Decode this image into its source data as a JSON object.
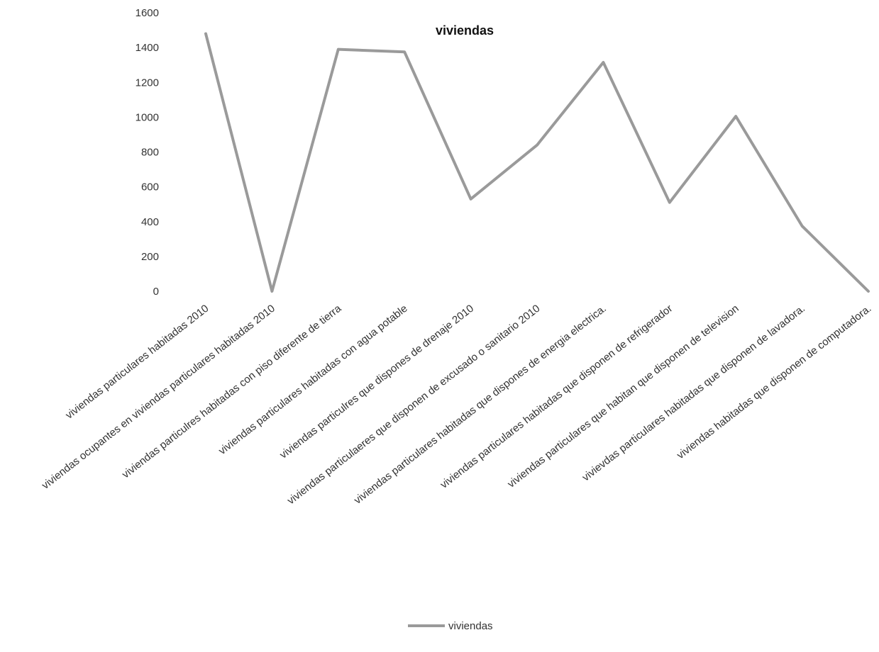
{
  "chart_data": {
    "type": "line",
    "title": "viviendas",
    "xlabel": "",
    "ylabel": "",
    "ylim": [
      0,
      1600
    ],
    "yticks": [
      0,
      200,
      400,
      600,
      800,
      1000,
      1200,
      1400,
      1600
    ],
    "yticks_labels": [
      "0",
      "200",
      "400",
      "600",
      "800",
      "1000",
      "1200",
      "1400",
      "1600"
    ],
    "grid": false,
    "legend_position": "bottom",
    "categories": [
      "viviendas particulares habitadas 2010",
      "viviendas ocupantes en viviendas particulares habitadas 2010",
      "viviendas particulres habitadas con piso diferente de tierra",
      "viviendas particulares habitadas con agua potable",
      "viviendas particulres que dispones de drenaje 2010",
      "viviendas particulaeres que disponen de excusado  o sanitario 2010",
      "viviendas particulares habitadas que dispones de energia electrica.",
      "viviendas particulares habitadas que disponen de refrigerador",
      "viviendas particulares que habitan que disponen de television",
      "vivievdas particulares habitadas que disponen de lavadora.",
      "viviendas habitadas que disponen de computadora."
    ],
    "series": [
      {
        "name": "viviendas",
        "color": "#9a9a9a",
        "values": [
          1480,
          0,
          1390,
          1375,
          530,
          840,
          1315,
          510,
          1005,
          375,
          0
        ]
      }
    ]
  }
}
